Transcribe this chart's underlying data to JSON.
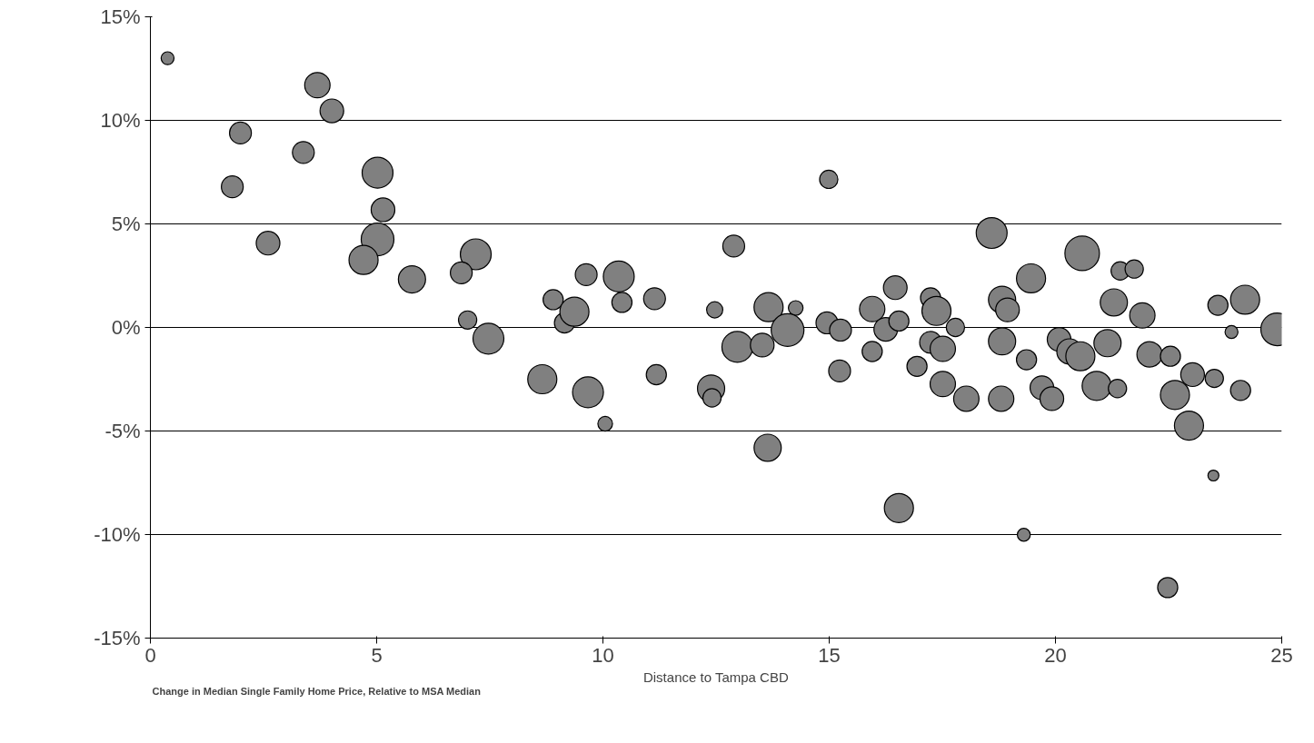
{
  "chart_data": {
    "type": "bubble",
    "xlabel": "Distance to Tampa CBD",
    "annotations": [
      "Change in Median Single Family Home Price, Relative to MSA Median"
    ],
    "xlim": [
      0,
      25
    ],
    "xticks": [
      0,
      5,
      10,
      15,
      20,
      25
    ],
    "ylim": [
      -15,
      15
    ],
    "yticks": [
      {
        "value": -15,
        "label": "-15%"
      },
      {
        "value": -10,
        "label": "-10%"
      },
      {
        "value": -5,
        "label": "-5%"
      },
      {
        "value": 0,
        "label": "0%"
      },
      {
        "value": 5,
        "label": "5%"
      },
      {
        "value": 10,
        "label": "10%"
      },
      {
        "value": 15,
        "label": "15%"
      }
    ],
    "grid": "y",
    "series": [
      {
        "color": "#808080",
        "x": [
          0.38,
          3.69,
          4.01,
          1.99,
          3.38,
          1.81,
          5.02,
          5.14,
          2.6,
          5.02,
          4.71,
          5.78,
          7.19,
          6.87,
          7.01,
          7.47,
          8.9,
          9.15,
          9.37,
          9.63,
          10.35,
          10.42,
          11.14,
          8.66,
          9.67,
          10.05,
          11.18,
          12.47,
          12.89,
          12.39,
          12.41,
          12.97,
          13.52,
          13.66,
          14.26,
          14.08,
          13.64,
          14.99,
          14.95,
          15.25,
          15.23,
          15.95,
          15.95,
          16.25,
          16.46,
          16.54,
          16.54,
          16.94,
          17.24,
          17.37,
          17.24,
          17.51,
          17.79,
          17.51,
          18.03,
          18.59,
          18.82,
          18.94,
          18.82,
          18.8,
          19.46,
          19.36,
          19.3,
          19.7,
          19.92,
          20.08,
          20.31,
          20.59,
          20.55,
          20.91,
          21.15,
          21.29,
          21.37,
          21.43,
          21.74,
          21.92,
          22.08,
          22.54,
          22.64,
          22.48,
          23.03,
          22.95,
          23.51,
          23.49,
          23.59,
          23.89,
          24.19,
          24.09,
          24.9
        ],
        "values": [
          13.0,
          11.7,
          10.46,
          9.39,
          8.45,
          6.79,
          7.47,
          5.68,
          4.07,
          4.25,
          3.26,
          2.32,
          3.53,
          2.64,
          0.36,
          -0.54,
          1.34,
          0.22,
          0.76,
          2.55,
          2.46,
          1.21,
          1.39,
          -2.5,
          -3.13,
          -4.65,
          -2.28,
          0.85,
          3.93,
          -2.95,
          -3.4,
          -0.94,
          -0.85,
          0.98,
          0.94,
          -0.13,
          -5.81,
          7.15,
          0.22,
          -0.13,
          -2.1,
          0.89,
          -1.16,
          -0.09,
          1.92,
          0.31,
          -8.72,
          -1.88,
          1.43,
          0.8,
          -0.72,
          -1.03,
          0,
          -2.73,
          -3.44,
          4.56,
          1.34,
          0.85,
          -0.67,
          -3.44,
          2.37,
          -1.56,
          -10.01,
          -2.91,
          -3.44,
          -0.58,
          -1.16,
          3.58,
          -1.39,
          -2.82,
          -0.76,
          1.21,
          -2.95,
          2.73,
          2.82,
          0.58,
          -1.3,
          -1.39,
          -3.26,
          -12.56,
          -2.28,
          -4.74,
          -2.46,
          -7.15,
          1.07,
          -0.22,
          1.34,
          -3.04,
          -0.09
        ],
        "sizes": [
          0.14,
          0.54,
          0.47,
          0.4,
          0.4,
          0.4,
          0.8,
          0.47,
          0.47,
          0.9,
          0.71,
          0.62,
          0.8,
          0.4,
          0.28,
          0.8,
          0.34,
          0.34,
          0.71,
          0.4,
          0.8,
          0.34,
          0.4,
          0.71,
          0.8,
          0.18,
          0.34,
          0.22,
          0.4,
          0.62,
          0.28,
          0.8,
          0.47,
          0.71,
          0.18,
          0.9,
          0.62,
          0.28,
          0.4,
          0.4,
          0.4,
          0.54,
          0.34,
          0.47,
          0.47,
          0.34,
          0.71,
          0.34,
          0.34,
          0.71,
          0.4,
          0.54,
          0.28,
          0.54,
          0.54,
          0.8,
          0.62,
          0.47,
          0.62,
          0.54,
          0.71,
          0.34,
          0.14,
          0.47,
          0.47,
          0.47,
          0.54,
          1,
          0.71,
          0.71,
          0.62,
          0.62,
          0.28,
          0.28,
          0.28,
          0.54,
          0.54,
          0.34,
          0.71,
          0.34,
          0.47,
          0.71,
          0.28,
          0.1,
          0.34,
          0.14,
          0.71,
          0.34,
          0.9
        ]
      }
    ]
  }
}
